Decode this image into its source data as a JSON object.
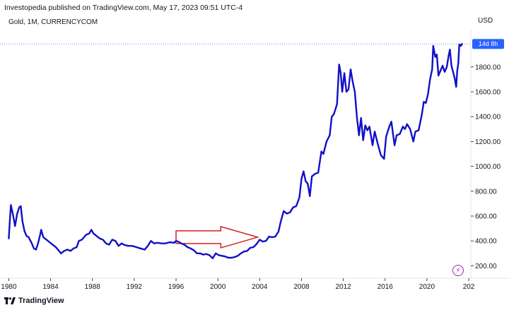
{
  "header": {
    "published_by": "Investopedia published on TradingView.com, May 17, 2023 09:51 UTC-4"
  },
  "legend": {
    "symbol": "Gold, 1M, CURRENCYCOM"
  },
  "price_scale": {
    "currency": "USD",
    "countdown_label": "14d 8h"
  },
  "footer": {
    "brand": "TradingView"
  },
  "colors": {
    "series": "#1010c8",
    "arrow": "#d42020",
    "price_line": "#2962ff",
    "bolt": "#9c27b0"
  },
  "icons": {
    "bolt": "lightning-icon",
    "brand": "tradingview-logo-icon"
  },
  "chart_data": {
    "type": "line",
    "title": "",
    "xlabel": "",
    "ylabel": "",
    "x_ticks": [
      "1980",
      "1984",
      "1988",
      "1992",
      "1996",
      "2000",
      "2004",
      "2008",
      "2012",
      "2016",
      "2020",
      "202"
    ],
    "y_ticks": [
      "200.00",
      "400.00",
      "600.00",
      "800.00",
      "1000.00",
      "1200.00",
      "1400.00",
      "1600.00",
      "1800.00"
    ],
    "xlim": [
      1979.7,
      2024.2
    ],
    "ylim": [
      100,
      2100
    ],
    "series": [
      {
        "name": "",
        "points": [
          [
            1980.0,
            420
          ],
          [
            1980.1,
            560
          ],
          [
            1980.2,
            690
          ],
          [
            1980.4,
            610
          ],
          [
            1980.6,
            520
          ],
          [
            1980.8,
            620
          ],
          [
            1981.0,
            670
          ],
          [
            1981.15,
            680
          ],
          [
            1981.3,
            560
          ],
          [
            1981.5,
            480
          ],
          [
            1981.7,
            440
          ],
          [
            1981.9,
            430
          ],
          [
            1982.2,
            380
          ],
          [
            1982.4,
            340
          ],
          [
            1982.6,
            330
          ],
          [
            1982.8,
            380
          ],
          [
            1983.0,
            450
          ],
          [
            1983.1,
            490
          ],
          [
            1983.3,
            430
          ],
          [
            1983.6,
            410
          ],
          [
            1983.9,
            390
          ],
          [
            1984.2,
            370
          ],
          [
            1984.5,
            350
          ],
          [
            1984.8,
            320
          ],
          [
            1985.0,
            300
          ],
          [
            1985.3,
            320
          ],
          [
            1985.6,
            330
          ],
          [
            1985.9,
            320
          ],
          [
            1986.2,
            340
          ],
          [
            1986.5,
            350
          ],
          [
            1986.7,
            400
          ],
          [
            1987.0,
            410
          ],
          [
            1987.4,
            450
          ],
          [
            1987.7,
            460
          ],
          [
            1987.9,
            490
          ],
          [
            1988.1,
            460
          ],
          [
            1988.4,
            440
          ],
          [
            1988.7,
            420
          ],
          [
            1989.0,
            410
          ],
          [
            1989.3,
            380
          ],
          [
            1989.6,
            370
          ],
          [
            1989.9,
            410
          ],
          [
            1990.2,
            400
          ],
          [
            1990.5,
            360
          ],
          [
            1990.8,
            380
          ],
          [
            1991.0,
            370
          ],
          [
            1991.4,
            360
          ],
          [
            1991.8,
            360
          ],
          [
            1992.2,
            350
          ],
          [
            1992.6,
            340
          ],
          [
            1993.0,
            330
          ],
          [
            1993.3,
            360
          ],
          [
            1993.6,
            400
          ],
          [
            1993.9,
            380
          ],
          [
            1994.2,
            385
          ],
          [
            1994.6,
            380
          ],
          [
            1995.0,
            380
          ],
          [
            1995.4,
            390
          ],
          [
            1995.8,
            385
          ],
          [
            1996.0,
            400
          ],
          [
            1996.2,
            395
          ],
          [
            1996.5,
            380
          ],
          [
            1996.8,
            370
          ],
          [
            1997.1,
            350
          ],
          [
            1997.4,
            340
          ],
          [
            1997.7,
            325
          ],
          [
            1998.0,
            300
          ],
          [
            1998.3,
            300
          ],
          [
            1998.6,
            290
          ],
          [
            1998.9,
            295
          ],
          [
            1999.2,
            285
          ],
          [
            1999.5,
            260
          ],
          [
            1999.8,
            300
          ],
          [
            2000.1,
            285
          ],
          [
            2000.4,
            280
          ],
          [
            2000.7,
            275
          ],
          [
            2001.0,
            265
          ],
          [
            2001.3,
            265
          ],
          [
            2001.6,
            270
          ],
          [
            2001.9,
            280
          ],
          [
            2002.2,
            300
          ],
          [
            2002.5,
            315
          ],
          [
            2002.8,
            320
          ],
          [
            2003.1,
            345
          ],
          [
            2003.4,
            350
          ],
          [
            2003.7,
            375
          ],
          [
            2004.0,
            410
          ],
          [
            2004.3,
            395
          ],
          [
            2004.6,
            400
          ],
          [
            2004.9,
            435
          ],
          [
            2005.2,
            430
          ],
          [
            2005.5,
            435
          ],
          [
            2005.8,
            475
          ],
          [
            2006.0,
            550
          ],
          [
            2006.3,
            640
          ],
          [
            2006.6,
            620
          ],
          [
            2006.9,
            630
          ],
          [
            2007.2,
            670
          ],
          [
            2007.5,
            680
          ],
          [
            2007.8,
            750
          ],
          [
            2008.0,
            900
          ],
          [
            2008.2,
            960
          ],
          [
            2008.4,
            880
          ],
          [
            2008.6,
            860
          ],
          [
            2008.8,
            760
          ],
          [
            2009.0,
            920
          ],
          [
            2009.3,
            940
          ],
          [
            2009.6,
            950
          ],
          [
            2009.9,
            1120
          ],
          [
            2010.1,
            1100
          ],
          [
            2010.4,
            1200
          ],
          [
            2010.7,
            1250
          ],
          [
            2010.9,
            1400
          ],
          [
            2011.1,
            1420
          ],
          [
            2011.4,
            1500
          ],
          [
            2011.6,
            1820
          ],
          [
            2011.75,
            1750
          ],
          [
            2011.9,
            1600
          ],
          [
            2012.1,
            1750
          ],
          [
            2012.3,
            1600
          ],
          [
            2012.5,
            1620
          ],
          [
            2012.7,
            1780
          ],
          [
            2012.9,
            1680
          ],
          [
            2013.1,
            1600
          ],
          [
            2013.3,
            1400
          ],
          [
            2013.5,
            1250
          ],
          [
            2013.7,
            1390
          ],
          [
            2013.9,
            1210
          ],
          [
            2014.1,
            1330
          ],
          [
            2014.3,
            1290
          ],
          [
            2014.5,
            1320
          ],
          [
            2014.8,
            1170
          ],
          [
            2015.0,
            1280
          ],
          [
            2015.3,
            1180
          ],
          [
            2015.6,
            1090
          ],
          [
            2015.9,
            1060
          ],
          [
            2016.1,
            1240
          ],
          [
            2016.4,
            1320
          ],
          [
            2016.6,
            1360
          ],
          [
            2016.9,
            1170
          ],
          [
            2017.1,
            1250
          ],
          [
            2017.4,
            1260
          ],
          [
            2017.7,
            1320
          ],
          [
            2017.9,
            1300
          ],
          [
            2018.1,
            1340
          ],
          [
            2018.4,
            1300
          ],
          [
            2018.7,
            1200
          ],
          [
            2018.9,
            1280
          ],
          [
            2019.2,
            1290
          ],
          [
            2019.5,
            1410
          ],
          [
            2019.7,
            1520
          ],
          [
            2019.9,
            1510
          ],
          [
            2020.1,
            1580
          ],
          [
            2020.3,
            1700
          ],
          [
            2020.5,
            1780
          ],
          [
            2020.6,
            1970
          ],
          [
            2020.8,
            1880
          ],
          [
            2020.95,
            1900
          ],
          [
            2021.1,
            1730
          ],
          [
            2021.3,
            1770
          ],
          [
            2021.5,
            1810
          ],
          [
            2021.7,
            1760
          ],
          [
            2021.9,
            1800
          ],
          [
            2022.1,
            1900
          ],
          [
            2022.2,
            1940
          ],
          [
            2022.35,
            1810
          ],
          [
            2022.5,
            1760
          ],
          [
            2022.65,
            1710
          ],
          [
            2022.8,
            1640
          ],
          [
            2022.9,
            1770
          ],
          [
            2023.0,
            1830
          ],
          [
            2023.1,
            1980
          ],
          [
            2023.25,
            1970
          ],
          [
            2023.37,
            1985
          ]
        ]
      }
    ],
    "annotations": [
      {
        "type": "arrow",
        "from": [
          1996.0,
          430
        ],
        "to": [
          2003.8,
          430
        ],
        "color": "#d42020"
      }
    ],
    "current_price_line": 1985,
    "grid": false,
    "legend": "none"
  }
}
